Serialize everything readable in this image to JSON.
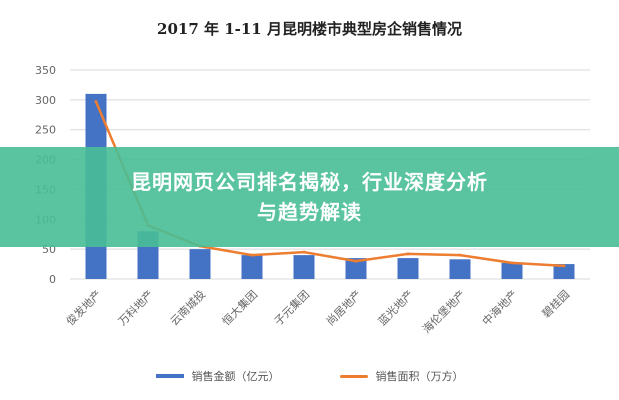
{
  "banner": {
    "line1": "昆明网页公司排名揭秘，行业深度分析",
    "line2": "与趋势解读"
  },
  "chart_data": {
    "type": "bar",
    "title": "2017 年 1-11 月昆明楼市典型房企销售情况",
    "categories": [
      "俊发地产",
      "万科地产",
      "云南城投",
      "恒大集团",
      "子元集团",
      "尚居地产",
      "蓝光地产",
      "海伦堡地产",
      "中海地产",
      "碧桂园"
    ],
    "series": [
      {
        "name": "销售金额（亿元）",
        "type": "bar",
        "color": "#4472c4",
        "values": [
          310,
          80,
          50,
          40,
          40,
          35,
          35,
          33,
          27,
          25
        ]
      },
      {
        "name": "销售面积（万方）",
        "type": "line",
        "color": "#ed7d31",
        "values": [
          297,
          90,
          55,
          40,
          45,
          30,
          42,
          40,
          27,
          22
        ]
      }
    ],
    "yticks": [
      0,
      50,
      100,
      150,
      200,
      250,
      300,
      350
    ],
    "ylim": [
      0,
      350
    ],
    "grid": true,
    "legend": "bottom"
  }
}
